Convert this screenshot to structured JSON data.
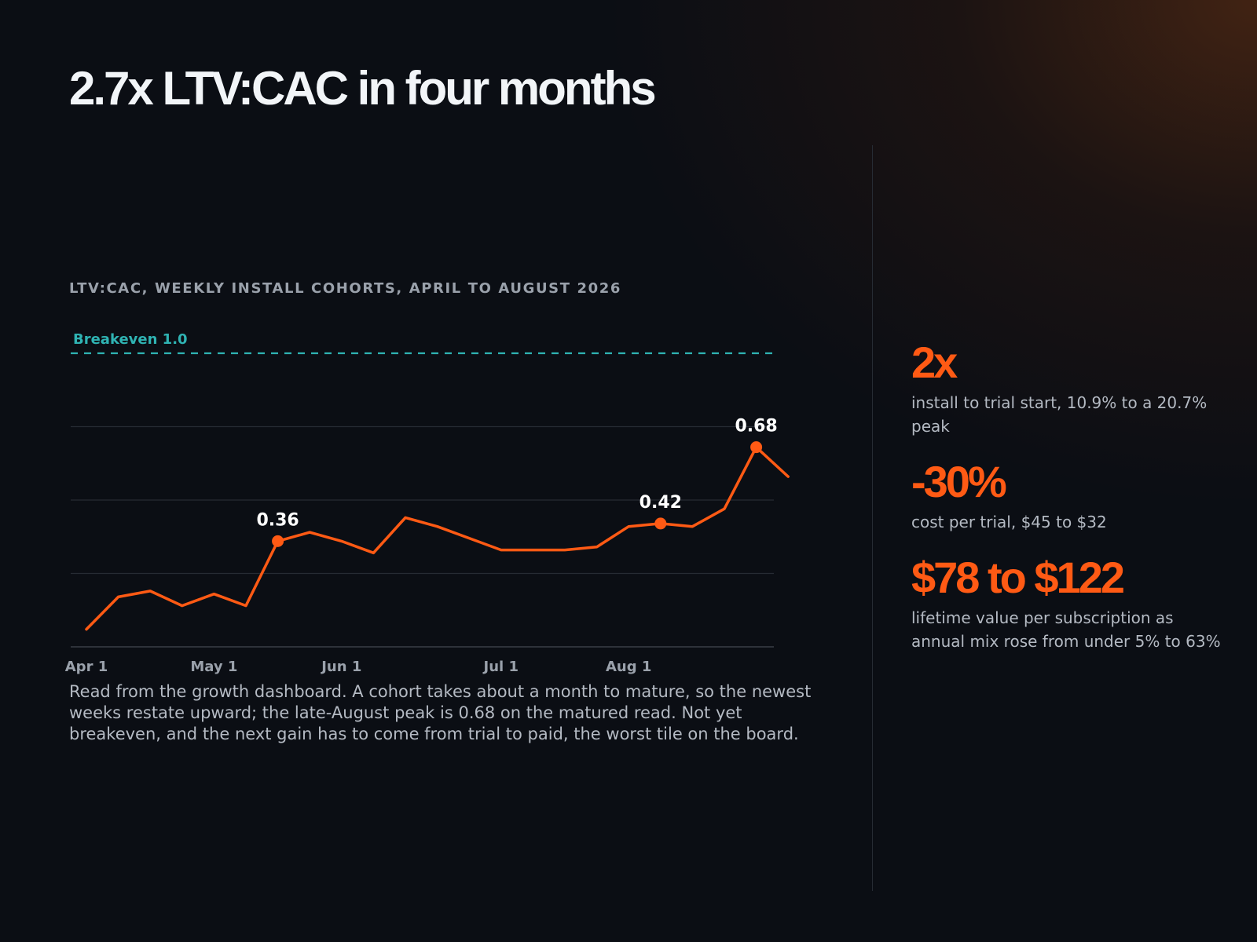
{
  "page": {
    "title": "2.7x LTV:CAC in four months",
    "chart_label": "LTV:CAC, WEEKLY INSTALL COHORTS, APRIL TO AUGUST 2026",
    "caption": "Read from the growth dashboard. A cohort takes about a month to mature, so the newest weeks restate upward; the late-August peak is 0.68 on the matured read. Not yet breakeven, and the next gain has to come from trial to paid, the worst tile on the board."
  },
  "stats": [
    {
      "value": "2x",
      "desc": "install to trial start, 10.9% to a 20.7% peak"
    },
    {
      "value": "-30%",
      "desc": "cost per trial, $45 to $32"
    },
    {
      "value": "$78 to $122",
      "desc": "lifetime value per subscription as annual mix rose from under 5% to 63%"
    }
  ],
  "colors": {
    "background": "#0b0e14",
    "accent": "#ff5a14",
    "reference_line": "#2fb3b3",
    "gridline": "#262b33",
    "muted_text": "#9aa1ab"
  },
  "chart_data": {
    "type": "line",
    "title": "LTV:CAC, WEEKLY INSTALL COHORTS, APRIL TO AUGUST 2026",
    "xlabel": "",
    "ylabel": "",
    "x": [
      "2026-04-01",
      "2026-04-08",
      "2026-04-15",
      "2026-04-22",
      "2026-04-29",
      "2026-05-06",
      "2026-05-13",
      "2026-05-20",
      "2026-05-27",
      "2026-06-03",
      "2026-06-10",
      "2026-06-17",
      "2026-06-24",
      "2026-07-01",
      "2026-07-08",
      "2026-07-15",
      "2026-07-22",
      "2026-07-29",
      "2026-08-05",
      "2026-08-12",
      "2026-08-19",
      "2026-08-26",
      "2026-09-02"
    ],
    "series": [
      {
        "values": [
          0.06,
          0.17,
          0.19,
          0.14,
          0.18,
          0.14,
          0.36,
          0.39,
          0.36,
          0.32,
          0.44,
          0.41,
          0.37,
          0.33,
          0.33,
          0.33,
          0.34,
          0.41,
          0.42,
          0.41,
          0.47,
          0.68,
          0.58
        ]
      }
    ],
    "highlighted_points": [
      {
        "index": 6,
        "label": "0.36"
      },
      {
        "index": 18,
        "label": "0.42"
      },
      {
        "index": 21,
        "label": "0.68"
      }
    ],
    "reference_line": {
      "value": 1.0,
      "label": "Breakeven 1.0",
      "style": "dashed"
    },
    "x_tick_labels": [
      "Apr 1",
      "May 1",
      "Jun 1",
      "Jul 1",
      "Aug 1"
    ],
    "x_tick_indices": [
      0,
      4,
      8,
      13,
      17
    ],
    "ylim": [
      0,
      1
    ],
    "y_gridlines": [
      0.25,
      0.5,
      0.75
    ],
    "grid": true,
    "y_tick_labels": false,
    "legend": "none"
  }
}
